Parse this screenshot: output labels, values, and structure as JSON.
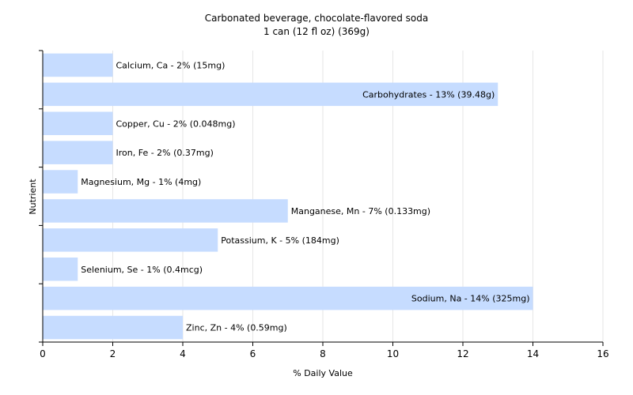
{
  "chart_data": {
    "type": "bar",
    "orientation": "horizontal",
    "title": "Carbonated beverage, chocolate-flavored soda",
    "subtitle": "1 can (12 fl oz) (369g)",
    "xlabel": "% Daily Value",
    "ylabel": "Nutrient",
    "xlim": [
      0,
      16
    ],
    "xticks": [
      0,
      2,
      4,
      6,
      8,
      10,
      12,
      14,
      16
    ],
    "grid": true,
    "bar_color": "#c6dcff",
    "categories": [
      "Calcium, Ca",
      "Carbohydrates",
      "Copper, Cu",
      "Iron, Fe",
      "Magnesium, Mg",
      "Manganese, Mn",
      "Potassium, K",
      "Selenium, Se",
      "Sodium, Na",
      "Zinc, Zn"
    ],
    "values": [
      2,
      13,
      2,
      2,
      1,
      7,
      5,
      1,
      14,
      4
    ],
    "labels": [
      "Calcium, Ca - 2% (15mg)",
      "Carbohydrates - 13% (39.48g)",
      "Copper, Cu - 2% (0.048mg)",
      "Iron, Fe - 2% (0.37mg)",
      "Magnesium, Mg - 1% (4mg)",
      "Manganese, Mn - 7% (0.133mg)",
      "Potassium, K - 5% (184mg)",
      "Selenium, Se - 1% (0.4mcg)",
      "Sodium, Na - 14% (325mg)",
      "Zinc, Zn - 4% (0.59mg)"
    ]
  }
}
